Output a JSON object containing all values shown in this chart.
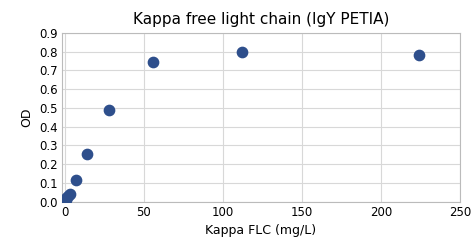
{
  "title": "Kappa free light chain (IgY PETIA)",
  "xlabel": "Kappa FLC (mg/L)",
  "ylabel": "OD",
  "x_data": [
    0.5,
    1.0,
    2.0,
    3.5,
    7.0,
    14.0,
    28.0,
    56.0,
    112.0,
    224.0
  ],
  "y_data": [
    0.01,
    0.02,
    0.03,
    0.04,
    0.115,
    0.255,
    0.49,
    0.745,
    0.8,
    0.78
  ],
  "marker_color": "#2E4F8C",
  "marker_size": 55,
  "xlim": [
    -2,
    250
  ],
  "ylim": [
    0,
    0.9
  ],
  "xticks": [
    0,
    50,
    100,
    150,
    200,
    250
  ],
  "yticks": [
    0.0,
    0.1,
    0.2,
    0.3,
    0.4,
    0.5,
    0.6,
    0.7,
    0.8,
    0.9
  ],
  "grid_color": "#d8d8d8",
  "background_color": "#ffffff",
  "title_fontsize": 11,
  "label_fontsize": 9,
  "tick_fontsize": 8.5
}
